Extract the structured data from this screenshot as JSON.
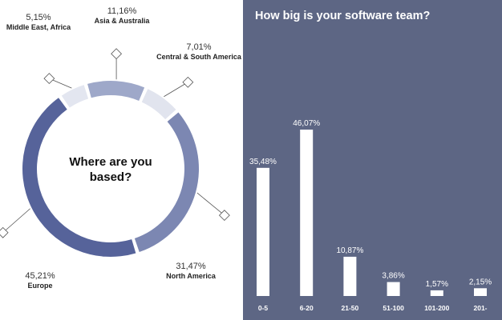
{
  "chart_data": [
    {
      "type": "pie",
      "title": "Where are you based?",
      "categories": [
        "Middle East, Africa",
        "Asia & Australia",
        "Central & South America",
        "North America",
        "Europe"
      ],
      "values": [
        5.15,
        11.16,
        7.01,
        31.47,
        45.21
      ],
      "value_labels": [
        "5,15%",
        "11,16%",
        "7,01%",
        "31,47%",
        "45,21%"
      ],
      "colors": [
        "#e3e6f0",
        "#9ea8c9",
        "#e1e4ee",
        "#7c87b2",
        "#56639a"
      ]
    },
    {
      "type": "bar",
      "title": "How big is your software team?",
      "categories": [
        "0-5",
        "6-20",
        "21-50",
        "51-100",
        "101-200",
        "201-"
      ],
      "values": [
        35.48,
        46.07,
        10.87,
        3.86,
        1.57,
        2.15
      ],
      "value_labels": [
        "35,48%",
        "46,07%",
        "10,87%",
        "3,86%",
        "1,57%",
        "2,15%"
      ],
      "colors": {
        "background": "#5d6684",
        "bar": "#ffffff"
      }
    }
  ]
}
